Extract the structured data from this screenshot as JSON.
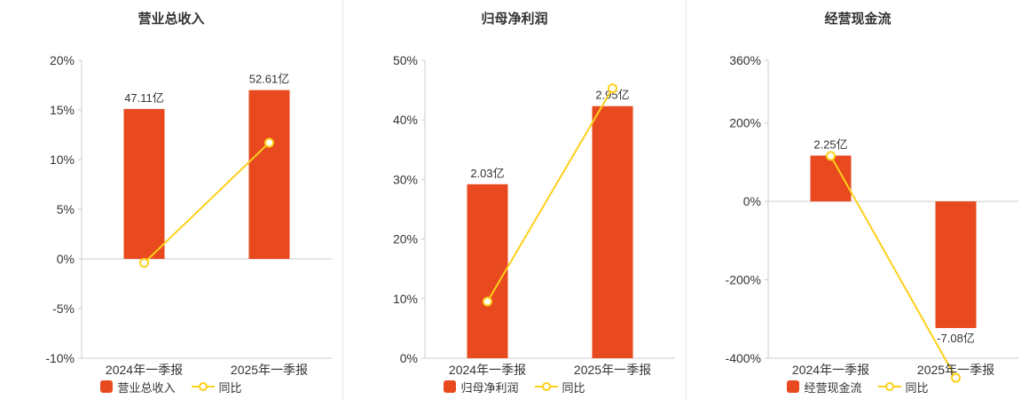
{
  "colors": {
    "bar": "#e8491e",
    "line": "#fdd019",
    "axis": "#cccccc",
    "text": "#333333",
    "divider": "#e5e5e5"
  },
  "chart_data": [
    {
      "type": "bar",
      "title": "营业总收入",
      "categories": [
        "2024年一季报",
        "2025年一季报"
      ],
      "y_axis": {
        "unit": "%",
        "ticks": [
          20,
          15,
          10,
          5,
          0,
          -5,
          -10
        ],
        "ylim": [
          -10,
          20
        ]
      },
      "series": [
        {
          "name": "营业总收入",
          "kind": "bar",
          "unit": "亿",
          "values": [
            47.11,
            52.61
          ],
          "labels": [
            "47.11亿",
            "52.61亿"
          ],
          "axis_pct": [
            15.1,
            17.0
          ]
        },
        {
          "name": "同比",
          "kind": "line",
          "unit": "%",
          "axis_pct": [
            -0.4,
            11.7
          ]
        }
      ]
    },
    {
      "type": "bar",
      "title": "归母净利润",
      "categories": [
        "2024年一季报",
        "2025年一季报"
      ],
      "y_axis": {
        "unit": "%",
        "ticks": [
          50,
          40,
          30,
          20,
          10,
          0
        ],
        "ylim": [
          0,
          50
        ]
      },
      "series": [
        {
          "name": "归母净利润",
          "kind": "bar",
          "unit": "亿",
          "values": [
            2.03,
            2.95
          ],
          "labels": [
            "2.03亿",
            "2.95亿"
          ],
          "axis_pct": [
            29.2,
            42.3
          ]
        },
        {
          "name": "同比",
          "kind": "line",
          "unit": "%",
          "axis_pct": [
            9.5,
            45.3
          ]
        }
      ]
    },
    {
      "type": "bar",
      "title": "经营现金流",
      "categories": [
        "2024年一季报",
        "2025年一季报"
      ],
      "y_axis": {
        "unit": "%",
        "ticks": [
          360,
          200,
          0,
          -200,
          -400
        ],
        "ylim": [
          -400,
          360
        ]
      },
      "series": [
        {
          "name": "经营现金流",
          "kind": "bar",
          "unit": "亿",
          "values": [
            2.25,
            -7.08
          ],
          "labels": [
            "2.25亿",
            "-7.08亿"
          ],
          "axis_pct": [
            117,
            -323
          ]
        },
        {
          "name": "同比",
          "kind": "line",
          "unit": "%",
          "axis_pct": [
            116,
            -450
          ]
        }
      ]
    }
  ]
}
